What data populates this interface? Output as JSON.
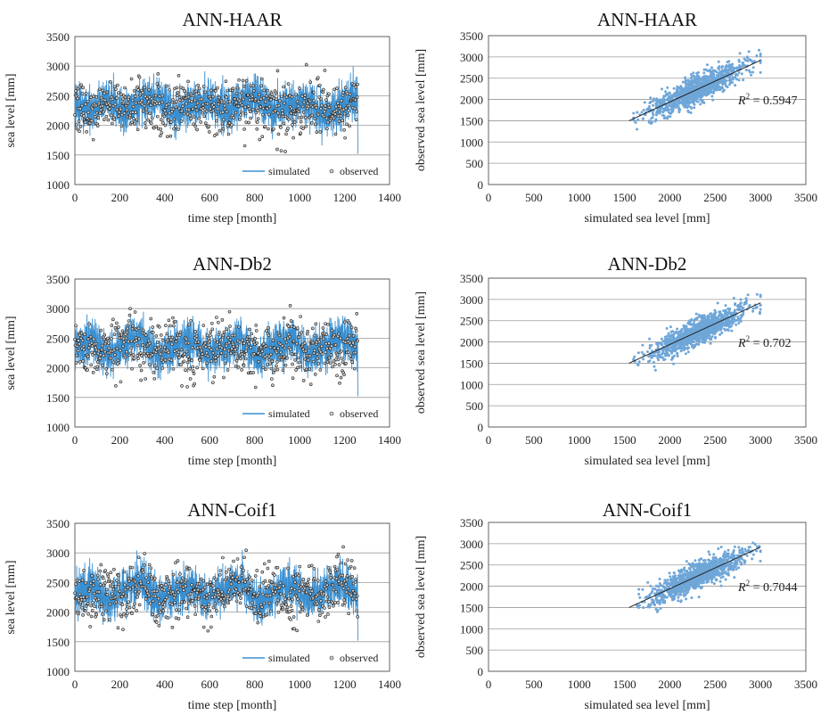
{
  "chart_data": [
    {
      "type": "line",
      "title": "ANN-HAAR",
      "xlabel": "time step [month]",
      "ylabel": "sea level [mm]",
      "xlim": [
        0,
        1400
      ],
      "ylim": [
        1000,
        3500
      ],
      "xticks": [
        "0",
        "200",
        "400",
        "600",
        "800",
        "1000",
        "1200",
        "1400"
      ],
      "yticks": [
        "1000",
        "1500",
        "2000",
        "2500",
        "3000",
        "3500"
      ],
      "grid": "horizontal",
      "legend": "bottom-right",
      "n_points": 1260,
      "series": [
        {
          "name": "simulated",
          "mark": "line",
          "color": "#3a8fd0",
          "values": [
            2350,
            2120,
            2600,
            1980,
            2450,
            2700,
            1950,
            2300,
            2580,
            2100,
            2420,
            2650,
            2050,
            2380,
            2500,
            1900,
            2300,
            2700
          ]
        },
        {
          "name": "observed",
          "mark": "points",
          "color": "#222222",
          "values": [
            2400,
            2100,
            2500,
            2250,
            2700,
            1900,
            2350,
            2550,
            2000,
            2300,
            2600,
            2150,
            2450,
            1800,
            2500,
            2350,
            2200,
            2650
          ]
        }
      ]
    },
    {
      "type": "scatter",
      "title": "ANN-HAAR",
      "xlabel": "simulated sea level [mm]",
      "ylabel": "observed sea level [mm]",
      "xlim": [
        0,
        3500
      ],
      "ylim": [
        0,
        3500
      ],
      "xticks": [
        "0",
        "500",
        "1000",
        "1500",
        "2000",
        "2500",
        "3000",
        "3500"
      ],
      "yticks": [
        "0",
        "500",
        "1000",
        "1500",
        "2000",
        "2500",
        "3000",
        "3500"
      ],
      "grid": "horizontal",
      "point_color": "#6fa6d8",
      "x_range": [
        1600,
        3000
      ],
      "trendline": {
        "x": [
          1550,
          3000
        ],
        "y": [
          1500,
          2920
        ]
      },
      "r2_label": "R",
      "r2_value": "= 0.5947"
    },
    {
      "type": "line",
      "title": "ANN-Db2",
      "xlabel": "time step [month]",
      "ylabel": "sea level [mm]",
      "xlim": [
        0,
        1400
      ],
      "ylim": [
        1000,
        3500
      ],
      "xticks": [
        "0",
        "200",
        "400",
        "600",
        "800",
        "1000",
        "1200",
        "1400"
      ],
      "yticks": [
        "1000",
        "1500",
        "2000",
        "2500",
        "3000",
        "3500"
      ],
      "grid": "horizontal",
      "legend": "bottom-right",
      "n_points": 1260,
      "series": [
        {
          "name": "simulated",
          "mark": "line",
          "color": "#3a8fd0",
          "values": [
            2300,
            2650,
            2000,
            2500,
            2800,
            1950,
            2400,
            2600,
            2100,
            2300,
            2700,
            1900,
            2450,
            2600,
            2050,
            2350,
            2750,
            2200
          ]
        },
        {
          "name": "observed",
          "mark": "points",
          "color": "#222222",
          "values": [
            2700,
            2050,
            2400,
            2650,
            2100,
            2300,
            2550,
            1950,
            2400,
            2650,
            2200,
            2350,
            2000,
            2600,
            2250,
            2500,
            2100,
            2650
          ]
        }
      ]
    },
    {
      "type": "scatter",
      "title": "ANN-Db2",
      "xlabel": "simulated sea level [mm]",
      "ylabel": "observed sea level [mm]",
      "xlim": [
        0,
        3500
      ],
      "ylim": [
        0,
        3500
      ],
      "xticks": [
        "0",
        "500",
        "1000",
        "1500",
        "2000",
        "2500",
        "3000",
        "3500"
      ],
      "yticks": [
        "0",
        "500",
        "1000",
        "1500",
        "2000",
        "2500",
        "3000",
        "3500"
      ],
      "grid": "horizontal",
      "point_color": "#6fa6d8",
      "x_range": [
        1600,
        3000
      ],
      "trendline": {
        "x": [
          1550,
          3000
        ],
        "y": [
          1500,
          2920
        ]
      },
      "r2_label": "R",
      "r2_value": "= 0.702"
    },
    {
      "type": "line",
      "title": "ANN-Coif1",
      "xlabel": "time step [month]",
      "ylabel": "sea level [mm]",
      "xlim": [
        0,
        1400
      ],
      "ylim": [
        1000,
        3500
      ],
      "xticks": [
        "0",
        "200",
        "400",
        "600",
        "800",
        "1000",
        "1200",
        "1400"
      ],
      "yticks": [
        "1000",
        "1500",
        "2000",
        "2500",
        "3000",
        "3500"
      ],
      "grid": "horizontal",
      "legend": "bottom-right",
      "n_points": 1260,
      "series": [
        {
          "name": "simulated",
          "mark": "line",
          "color": "#3a8fd0",
          "values": [
            2250,
            2600,
            1900,
            2450,
            2750,
            2000,
            2350,
            2550,
            2100,
            2400,
            2800,
            1850,
            2300,
            2650,
            2000,
            2450,
            2700,
            2150
          ]
        },
        {
          "name": "observed",
          "mark": "points",
          "color": "#222222",
          "values": [
            2300,
            2100,
            2600,
            2200,
            2950,
            1900,
            2350,
            2500,
            2050,
            2400,
            2800,
            2150,
            2450,
            1700,
            2550,
            2300,
            3050,
            2200
          ]
        }
      ]
    },
    {
      "type": "scatter",
      "title": "ANN-Coif1",
      "xlabel": "simulated sea level [mm]",
      "ylabel": "observed sea level [mm]",
      "xlim": [
        0,
        3500
      ],
      "ylim": [
        0,
        3500
      ],
      "xticks": [
        "0",
        "500",
        "1000",
        "1500",
        "2000",
        "2500",
        "3000",
        "3500"
      ],
      "yticks": [
        "0",
        "500",
        "1000",
        "1500",
        "2000",
        "2500",
        "3000",
        "3500"
      ],
      "grid": "horizontal",
      "point_color": "#6fa6d8",
      "x_range": [
        1600,
        3000
      ],
      "trendline": {
        "x": [
          1550,
          3000
        ],
        "y": [
          1500,
          2920
        ]
      },
      "r2_label": "R",
      "r2_value": "= 0.7044"
    }
  ]
}
